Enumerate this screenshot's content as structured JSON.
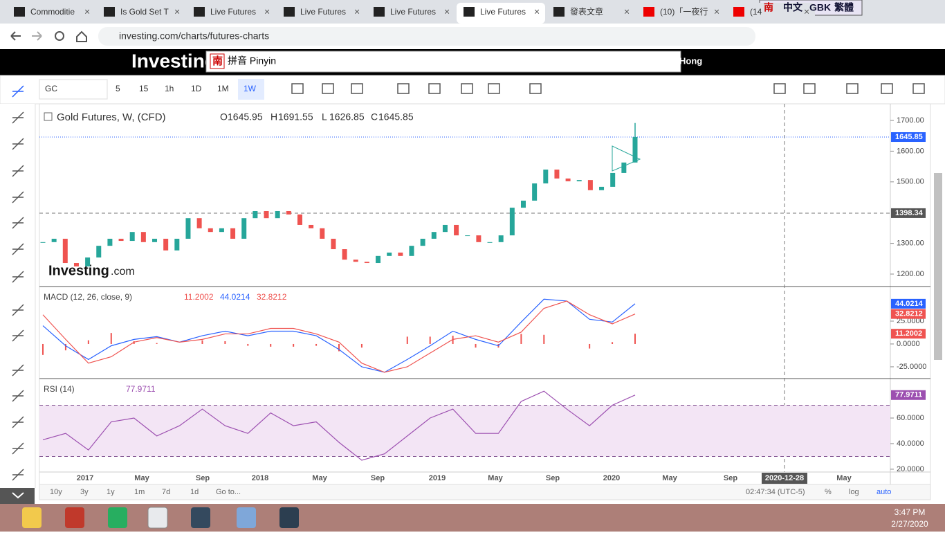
{
  "browser": {
    "tabs": [
      "Commoditie",
      "Is Gold Set T",
      "Live Futures",
      "Live Futures",
      "Live Futures",
      "Live Futures",
      "發表文章",
      "(10)「一夜行",
      "(14"
    ],
    "url": "investing.com/charts/futures-charts",
    "ime_top": [
      "南",
      "中文",
      "GBK",
      "繁體"
    ]
  },
  "site": {
    "logo": "Investing",
    "ime_box": [
      "南",
      "拼音 Pinyin"
    ],
    "region": "Hong"
  },
  "toolbar": {
    "symbol": "GC",
    "intervals": [
      "5",
      "15",
      "1h",
      "1D",
      "1M",
      "1W"
    ]
  },
  "chart_data": [
    {
      "type": "candlestick",
      "title": "Gold Futures, W, (CFD)",
      "ohlc": [
        {
          "label": "O",
          "value": "1645.95"
        },
        {
          "label": "H",
          "value": "1691.55"
        },
        {
          "label": "L",
          "value": "1626.85"
        },
        {
          "label": "C",
          "value": "1645.85"
        }
      ],
      "watermark": [
        "Investing",
        ".com"
      ],
      "values": [
        1304,
        1315,
        1236,
        1225,
        1254,
        1292,
        1315,
        1308,
        1337,
        1304,
        1315,
        1277,
        1315,
        1382,
        1349,
        1337,
        1349,
        1315,
        1382,
        1405,
        1382,
        1405,
        1394,
        1360,
        1349,
        1315,
        1281,
        1247,
        1240,
        1236,
        1259,
        1270,
        1259,
        1292,
        1315,
        1337,
        1360,
        1326,
        1326,
        1304,
        1304,
        1326,
        1416,
        1439,
        1495,
        1540,
        1511,
        1502,
        1506,
        1473,
        1484,
        1529,
        1563,
        1646
      ],
      "up_color": "#26a69a",
      "down_color": "#ef5350",
      "ylim": [
        1159.5,
        1754
      ],
      "yticks": [
        {
          "value": 1700,
          "label": "1700.00"
        },
        {
          "value": 1600,
          "label": "1600.00"
        },
        {
          "value": 1500,
          "label": "1500.00"
        },
        {
          "value": 1300,
          "label": "1300.00"
        },
        {
          "value": 1200,
          "label": "1200.00"
        }
      ],
      "last_price": 1645.85,
      "crosshair_price": 1398.34
    },
    {
      "type": "macd",
      "title": "MACD (12, 26, close, 9)",
      "readout": [
        11.2002,
        44.0214,
        32.8212
      ],
      "histogram_color": "#ef5350",
      "series": [
        {
          "color": "#2962ff",
          "values": [
            20,
            -2,
            -17,
            -2,
            5,
            8,
            2,
            9,
            14,
            9,
            14,
            14,
            9,
            -6,
            -25,
            -31,
            -17,
            -2,
            14,
            5,
            -2,
            24,
            49,
            47,
            27,
            24,
            44.0214
          ]
        },
        {
          "color": "#ef5350",
          "values": [
            32,
            5,
            -21,
            -14,
            2,
            7,
            2,
            5,
            11,
            11,
            17,
            17,
            11,
            2,
            -21,
            -31,
            -25,
            -10,
            5,
            9,
            2,
            13,
            39,
            47,
            32,
            22,
            32.8212
          ]
        }
      ],
      "ylim": [
        -37.9,
        62.1
      ],
      "yticks": [
        {
          "value": 25,
          "label": "25.0000"
        },
        {
          "value": 0,
          "label": "0.0000"
        },
        {
          "value": -25,
          "label": "-25.0000"
        }
      ]
    },
    {
      "type": "line",
      "title": "RSI (14)",
      "readout": 77.9711,
      "color": "#9c4fb0",
      "values": [
        43,
        48,
        35,
        57,
        60,
        46,
        54,
        67,
        54,
        48,
        64,
        54,
        57,
        41,
        27,
        32,
        46,
        60,
        67,
        48,
        48,
        73,
        81,
        67,
        54,
        70,
        77.9711
      ],
      "bands": [
        70,
        30
      ],
      "ylim": [
        17.8,
        90.3
      ],
      "yticks": [
        {
          "value": 60,
          "label": "60.0000"
        },
        {
          "value": 40,
          "label": "40.0000"
        },
        {
          "value": 20,
          "label": "20.0000"
        }
      ]
    }
  ],
  "xaxis": {
    "labels": [
      "2017",
      "May",
      "Sep",
      "2018",
      "May",
      "Sep",
      "2019",
      "May",
      "Sep",
      "2020",
      "May",
      "Sep",
      "2020-12-28",
      "May"
    ]
  },
  "footer": {
    "ranges": [
      "10y",
      "3y",
      "1y",
      "1m",
      "7d",
      "1d"
    ],
    "goto": "Go to...",
    "time": "02:47:34 (UTC-5)",
    "options": [
      "%",
      "log",
      "auto"
    ]
  },
  "taskbar": {
    "time": "3:47 PM",
    "date": "2/27/2020"
  }
}
